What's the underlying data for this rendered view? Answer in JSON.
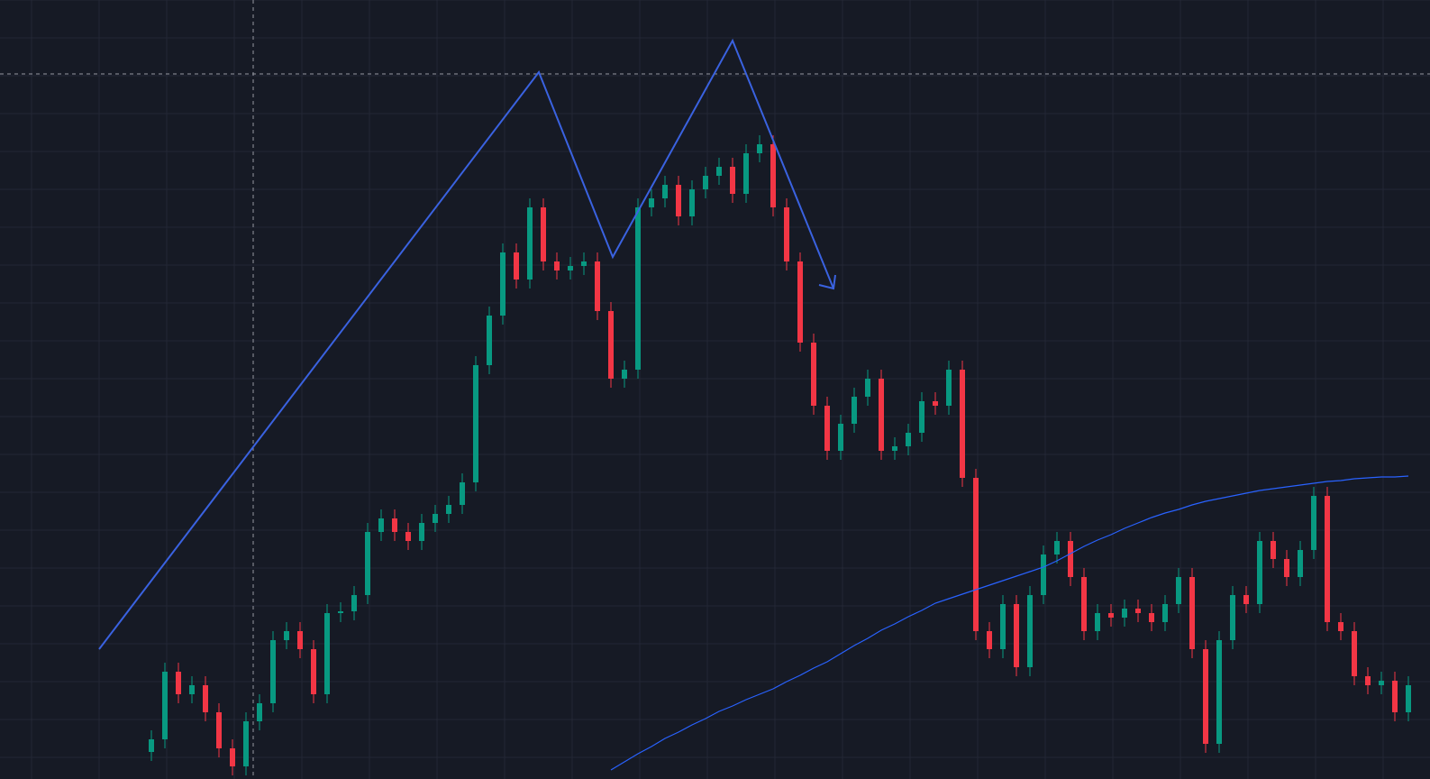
{
  "chart_data": {
    "type": "candlestick",
    "ylim": [
      0,
      864
    ],
    "grid": true,
    "up_color": "#089981",
    "down_color": "#f23645",
    "open": [
      30,
      44,
      119,
      94,
      104,
      74,
      34,
      14,
      64,
      84,
      154,
      164,
      144,
      94,
      184,
      186,
      204,
      274,
      289,
      274,
      264,
      284,
      294,
      304,
      329,
      459,
      514,
      584,
      554,
      634,
      574,
      564,
      569,
      574,
      519,
      444,
      454,
      634,
      644,
      659,
      624,
      654,
      669,
      679,
      649,
      694,
      704,
      634,
      574,
      484,
      414,
      364,
      394,
      424,
      444,
      364,
      369,
      384,
      419,
      414,
      454,
      334,
      164,
      144,
      194,
      124,
      204,
      249,
      264,
      224,
      164,
      184,
      179,
      189,
      184,
      174,
      194,
      224,
      144,
      39,
      154,
      204,
      194,
      264,
      244,
      224,
      254,
      314,
      174,
      164,
      114,
      104,
      109,
      74
    ],
    "high": [
      54,
      129,
      129,
      114,
      114,
      84,
      44,
      74,
      94,
      164,
      174,
      174,
      154,
      194,
      196,
      214,
      284,
      299,
      299,
      284,
      294,
      304,
      314,
      339,
      469,
      524,
      594,
      594,
      644,
      644,
      584,
      579,
      584,
      584,
      529,
      464,
      644,
      654,
      669,
      669,
      664,
      679,
      689,
      689,
      704,
      714,
      714,
      644,
      584,
      494,
      424,
      404,
      434,
      454,
      454,
      379,
      394,
      429,
      429,
      464,
      464,
      344,
      174,
      204,
      204,
      214,
      259,
      274,
      274,
      234,
      194,
      194,
      199,
      199,
      194,
      204,
      234,
      234,
      154,
      164,
      214,
      214,
      274,
      274,
      254,
      264,
      324,
      324,
      184,
      174,
      124,
      119,
      119,
      114
    ],
    "low": [
      20,
      34,
      84,
      84,
      64,
      24,
      4,
      4,
      54,
      74,
      144,
      134,
      84,
      84,
      174,
      176,
      194,
      264,
      264,
      254,
      254,
      274,
      284,
      294,
      319,
      449,
      504,
      544,
      544,
      564,
      554,
      554,
      559,
      509,
      434,
      434,
      444,
      624,
      634,
      614,
      614,
      644,
      659,
      639,
      639,
      684,
      624,
      564,
      474,
      404,
      354,
      354,
      384,
      414,
      354,
      354,
      359,
      374,
      404,
      404,
      324,
      154,
      134,
      134,
      114,
      114,
      194,
      239,
      214,
      154,
      154,
      169,
      169,
      174,
      164,
      164,
      184,
      134,
      29,
      29,
      144,
      184,
      184,
      234,
      214,
      214,
      244,
      164,
      154,
      104,
      94,
      94,
      64,
      64
    ],
    "close": [
      44,
      119,
      94,
      104,
      74,
      34,
      14,
      64,
      84,
      154,
      164,
      144,
      94,
      184,
      186,
      204,
      274,
      289,
      274,
      264,
      284,
      294,
      304,
      329,
      459,
      514,
      584,
      554,
      634,
      574,
      564,
      569,
      574,
      519,
      444,
      454,
      634,
      644,
      659,
      624,
      654,
      669,
      679,
      649,
      694,
      704,
      634,
      574,
      484,
      414,
      364,
      394,
      424,
      444,
      364,
      369,
      384,
      419,
      414,
      454,
      334,
      164,
      144,
      194,
      124,
      204,
      249,
      264,
      224,
      164,
      184,
      179,
      189,
      184,
      174,
      194,
      224,
      144,
      39,
      154,
      204,
      194,
      264,
      244,
      224,
      254,
      314,
      174,
      164,
      114,
      104,
      109,
      74,
      104
    ],
    "moving_average": {
      "color": "#2962ff",
      "values": [
        null,
        null,
        null,
        null,
        null,
        null,
        null,
        null,
        null,
        null,
        null,
        null,
        null,
        null,
        null,
        null,
        null,
        null,
        null,
        null,
        null,
        null,
        null,
        null,
        null,
        null,
        null,
        null,
        null,
        null,
        null,
        null,
        null,
        null,
        10,
        19,
        28,
        36,
        45,
        52,
        60,
        67,
        75,
        81,
        88,
        94,
        100,
        108,
        115,
        123,
        130,
        139,
        148,
        156,
        165,
        172,
        180,
        187,
        195,
        200,
        205,
        210,
        215,
        220,
        225,
        230,
        235,
        242,
        250,
        258,
        265,
        271,
        278,
        284,
        290,
        295,
        299,
        304,
        308,
        311,
        314,
        317,
        320,
        322,
        324,
        326,
        328,
        330,
        331,
        333,
        334,
        335,
        335,
        336
      ]
    }
  }
}
